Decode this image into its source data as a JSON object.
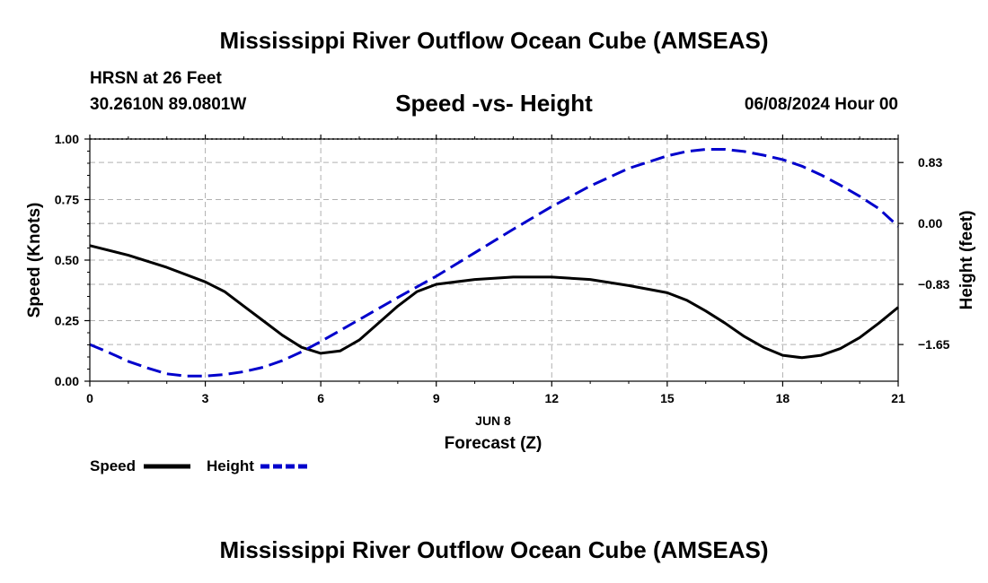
{
  "header": {
    "title_top": "Mississippi River Outflow Ocean Cube (AMSEAS)",
    "title_bottom": "Mississippi River Outflow Ocean Cube (AMSEAS)",
    "station": "HRSN at 26 Feet",
    "location": "30.2610N  89.0801W",
    "datetime": "06/08/2024 Hour 00"
  },
  "chart_data": {
    "type": "line",
    "title": "Speed -vs- Height",
    "xlabel": "Forecast (Z)",
    "xsublabel": "JUN 8",
    "ylabel": "Speed (Knots)",
    "y2label": "Height (feet)",
    "xlim": [
      0,
      21
    ],
    "ylim": [
      0,
      1
    ],
    "y2lim": [
      -2.15,
      1.15
    ],
    "xticks": [
      0,
      3,
      6,
      9,
      12,
      15,
      18,
      21
    ],
    "xtick_labels": [
      "0",
      "3",
      "6",
      "9",
      "12",
      "15",
      "18",
      "21"
    ],
    "yticks": [
      0,
      0.25,
      0.5,
      0.75,
      1.0
    ],
    "ytick_labels": [
      "0.00",
      "0.25",
      "0.50",
      "0.75",
      "1.00"
    ],
    "y2ticks": [
      0.83,
      0,
      -0.83,
      -1.65
    ],
    "y2tick_labels": [
      "0.83",
      "0.00",
      "−0.83",
      "−1.65"
    ],
    "grid": true,
    "legend_position": "bottom-left",
    "series": [
      {
        "name": "Speed",
        "axis": "left",
        "color": "#000000",
        "style": "solid",
        "x": [
          0,
          1,
          2,
          3,
          3.5,
          4,
          4.5,
          5,
          5.5,
          6,
          6.5,
          7,
          7.5,
          8,
          8.5,
          9,
          10,
          11,
          12,
          13,
          14,
          15,
          15.5,
          16,
          16.5,
          17,
          17.5,
          18,
          18.5,
          19,
          19.5,
          20,
          20.5,
          21
        ],
        "values": [
          0.56,
          0.52,
          0.47,
          0.41,
          0.37,
          0.31,
          0.25,
          0.19,
          0.14,
          0.115,
          0.125,
          0.17,
          0.24,
          0.31,
          0.37,
          0.4,
          0.42,
          0.43,
          0.43,
          0.42,
          0.395,
          0.365,
          0.335,
          0.29,
          0.24,
          0.185,
          0.14,
          0.107,
          0.097,
          0.107,
          0.135,
          0.18,
          0.24,
          0.305
        ]
      },
      {
        "name": "Height",
        "axis": "right",
        "color": "#0000cc",
        "style": "dashed",
        "x": [
          0,
          0.5,
          1,
          1.5,
          2,
          2.5,
          3,
          3.5,
          4,
          4.5,
          5,
          5.5,
          6,
          7,
          8,
          9,
          10,
          11,
          12,
          13,
          14,
          15,
          15.5,
          16,
          16.5,
          17,
          17.5,
          18,
          18.5,
          19,
          19.5,
          20,
          20.5,
          21
        ],
        "values": [
          -1.65,
          -1.76,
          -1.88,
          -1.97,
          -2.05,
          -2.08,
          -2.08,
          -2.06,
          -2.02,
          -1.96,
          -1.87,
          -1.75,
          -1.61,
          -1.31,
          -1.01,
          -0.72,
          -0.4,
          -0.08,
          0.23,
          0.51,
          0.75,
          0.92,
          0.98,
          1.01,
          1.01,
          0.98,
          0.93,
          0.87,
          0.78,
          0.66,
          0.52,
          0.37,
          0.2,
          -0.04
        ]
      }
    ]
  }
}
